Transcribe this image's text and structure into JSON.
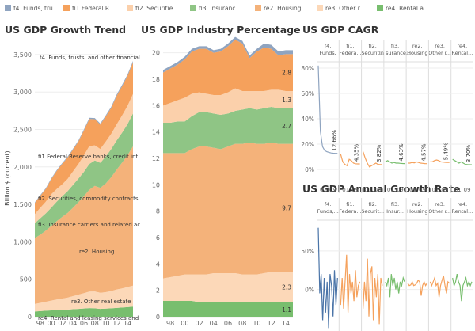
{
  "colors": {
    "f4": "#8fa4c0",
    "fi1": "#f5a15c",
    "fi2": "#fbd0ab",
    "fi3": "#8fc585",
    "re2": "#f4b27a",
    "re3": "#fcd8b8",
    "re4": "#78be6e",
    "grid": "#eeeeee",
    "axis": "#666666"
  },
  "legend": {
    "items": [
      {
        "label": "f4. Funds, trus...",
        "color": "#8fa4c0"
      },
      {
        "label": "fi1.Federal R...",
        "color": "#f5a15c"
      },
      {
        "label": "fi2. Securitie...",
        "color": "#fbd0ab"
      },
      {
        "label": "fi3. Insuranc...",
        "color": "#8fc585"
      },
      {
        "label": "re2. Housing",
        "color": "#f4b27a"
      },
      {
        "label": "re3. Other r...",
        "color": "#fcd8b8"
      },
      {
        "label": "re4. Rental a...",
        "color": "#78be6e"
      }
    ]
  },
  "chart_data": [
    {
      "type": "area",
      "title": "US GDP Growth Trend",
      "ylabel": "Billion $ (current)",
      "ylim": [
        0,
        3700
      ],
      "yticks": [
        "0",
        "500",
        "1,000",
        "1,500",
        "2,000",
        "2,500",
        "3,000",
        "3,500"
      ],
      "xticks": [
        "98",
        "00",
        "02",
        "04",
        "06",
        "08",
        "10",
        "12",
        "14"
      ],
      "x": [
        1997,
        1998,
        1999,
        2000,
        2001,
        2002,
        2003,
        2004,
        2005,
        2006,
        2007,
        2008,
        2009,
        2010,
        2011,
        2012,
        2013,
        2014,
        2015
      ],
      "series": [
        {
          "name": "re4. Rental and leasing services and lessors",
          "color": "#78be6e",
          "values": [
            70,
            75,
            80,
            85,
            90,
            92,
            95,
            100,
            105,
            110,
            115,
            112,
            105,
            108,
            112,
            118,
            123,
            128,
            135
          ]
        },
        {
          "name": "re3. Other real estate",
          "color": "#fcd8b8",
          "values": [
            100,
            110,
            120,
            130,
            140,
            150,
            160,
            175,
            190,
            205,
            220,
            225,
            215,
            220,
            230,
            245,
            255,
            268,
            280
          ]
        },
        {
          "name": "re2. Housing",
          "color": "#f4b27a",
          "values": [
            880,
            910,
            950,
            995,
            1045,
            1090,
            1130,
            1180,
            1235,
            1295,
            1360,
            1410,
            1400,
            1450,
            1520,
            1600,
            1680,
            1760,
            1860
          ]
        },
        {
          "name": "fi3. Insurance carriers and related activities",
          "color": "#8fc585",
          "values": [
            200,
            220,
            230,
            245,
            260,
            275,
            290,
            305,
            315,
            325,
            345,
            340,
            335,
            360,
            375,
            390,
            400,
            415,
            440
          ]
        },
        {
          "name": "fi2. Securities, commodity contracts, and investments",
          "color": "#fbd0ab",
          "values": [
            120,
            140,
            155,
            180,
            170,
            160,
            165,
            180,
            195,
            220,
            240,
            200,
            185,
            200,
            205,
            215,
            230,
            245,
            260
          ]
        },
        {
          "name": "fi1.Federal Reserve banks, credit intermediation",
          "color": "#f5a15c",
          "values": [
            150,
            160,
            170,
            200,
            240,
            270,
            285,
            290,
            300,
            330,
            360,
            350,
            325,
            335,
            345,
            380,
            390,
            400,
            420
          ]
        },
        {
          "name": "f4. Funds, trusts, and other financial vehicles",
          "color": "#8fa4c0",
          "values": [
            8,
            9,
            10,
            11,
            11,
            12,
            12,
            13,
            14,
            15,
            16,
            15,
            14,
            15,
            16,
            17,
            18,
            19,
            20
          ]
        }
      ],
      "annotations": [
        "f4. Funds, trusts, and other financial",
        "fi1.Federal Reserve banks, credit int",
        "fi2. Securities, commodity contracts",
        "fi3. Insurance carriers and related ac",
        "re2. Housing",
        "re3. Other real estate",
        "re4. Rental and leasing services and"
      ]
    },
    {
      "type": "area",
      "title": "US GDP Industry Percentage",
      "ylim": [
        0,
        21
      ],
      "yticks": [
        "0",
        "2",
        "4",
        "6",
        "8",
        "10",
        "12",
        "14",
        "16",
        "18",
        "20"
      ],
      "xticks": [
        "98",
        "00",
        "02",
        "04",
        "06",
        "08",
        "10",
        "12",
        "14"
      ],
      "x": [
        1997,
        1998,
        1999,
        2000,
        2001,
        2002,
        2003,
        2004,
        2005,
        2006,
        2007,
        2008,
        2009,
        2010,
        2011,
        2012,
        2013,
        2014,
        2015
      ],
      "series": [
        {
          "name": "re4",
          "color": "#78be6e",
          "values": [
            1.2,
            1.2,
            1.2,
            1.2,
            1.2,
            1.1,
            1.1,
            1.1,
            1.1,
            1.1,
            1.1,
            1.1,
            1.1,
            1.1,
            1.1,
            1.1,
            1.1,
            1.1,
            1.1
          ]
        },
        {
          "name": "re3",
          "color": "#fcd8b8",
          "values": [
            1.7,
            1.8,
            1.9,
            2.0,
            2.0,
            2.1,
            2.1,
            2.2,
            2.2,
            2.2,
            2.2,
            2.1,
            2.1,
            2.1,
            2.2,
            2.3,
            2.3,
            2.3,
            2.3
          ]
        },
        {
          "name": "re2",
          "color": "#f4b27a",
          "values": [
            9.5,
            9.4,
            9.3,
            9.2,
            9.5,
            9.7,
            9.7,
            9.5,
            9.4,
            9.6,
            9.8,
            9.9,
            10.0,
            9.9,
            9.8,
            9.8,
            9.7,
            9.7,
            9.7
          ]
        },
        {
          "name": "fi3",
          "color": "#8fc585",
          "values": [
            2.3,
            2.3,
            2.4,
            2.4,
            2.5,
            2.6,
            2.6,
            2.6,
            2.6,
            2.5,
            2.5,
            2.6,
            2.6,
            2.6,
            2.7,
            2.7,
            2.7,
            2.7,
            2.7
          ]
        },
        {
          "name": "fi2",
          "color": "#fbd0ab",
          "values": [
            1.3,
            1.5,
            1.6,
            1.8,
            1.7,
            1.5,
            1.4,
            1.4,
            1.5,
            1.6,
            1.7,
            1.4,
            1.3,
            1.4,
            1.3,
            1.3,
            1.4,
            1.3,
            1.3
          ]
        },
        {
          "name": "fi1",
          "color": "#f5a15c",
          "values": [
            2.5,
            2.6,
            2.7,
            2.9,
            3.2,
            3.3,
            3.4,
            3.2,
            3.3,
            3.5,
            3.7,
            3.6,
            2.5,
            3.0,
            3.3,
            3.1,
            2.6,
            2.8,
            2.8
          ]
        },
        {
          "name": "f4",
          "color": "#8fa4c0",
          "values": [
            0.2,
            0.2,
            0.2,
            0.2,
            0.2,
            0.2,
            0.2,
            0.2,
            0.2,
            0.2,
            0.2,
            0.2,
            0.2,
            0.2,
            0.3,
            0.3,
            0.3,
            0.3,
            0.3
          ]
        }
      ],
      "end_labels": [
        "1.1",
        "2.3",
        "9.7",
        "2.7",
        "1.3",
        "2.8"
      ]
    },
    {
      "type": "line",
      "title": "US GDP CAGR",
      "ylim": [
        -10,
        85
      ],
      "yticks": [
        "0%",
        "20%",
        "40%",
        "60%",
        "80%"
      ],
      "columns": [
        {
          "label": "f4. Funds,",
          "color": "#8fa4c0",
          "values": [
            82,
            30,
            18,
            15,
            14,
            13.5,
            13,
            12.8,
            12.7,
            12.66
          ],
          "end_label": "12.66%"
        },
        {
          "label": "fi1. Federa...",
          "color": "#f5a15c",
          "values": [
            12,
            6,
            4,
            3,
            8,
            7,
            5,
            4.5,
            4.4,
            4.35
          ],
          "end_label": "4.35%"
        },
        {
          "label": "fi2. Securit...",
          "color": "#f5a15c",
          "values": [
            14,
            9,
            5,
            2,
            3,
            4,
            5,
            4,
            3.9,
            3.82
          ],
          "end_label": "3.82%"
        },
        {
          "label": "fi3. In surance...",
          "color": "#78be6e",
          "values": [
            6,
            7,
            6,
            5,
            5.5,
            5,
            5,
            4.8,
            4.7,
            4.63
          ],
          "end_label": "4.63%"
        },
        {
          "label": "re2. Housing",
          "color": "#f5a15c",
          "values": [
            5,
            5,
            5.5,
            5.2,
            6,
            5.5,
            5,
            4.8,
            4.6,
            4.57
          ],
          "end_label": "4.57%"
        },
        {
          "label": "re3. Other r...",
          "color": "#f5a15c",
          "values": [
            6,
            6,
            7,
            7.5,
            7,
            6,
            5.8,
            5.6,
            5.5,
            5.49
          ],
          "end_label": "5.49%"
        },
        {
          "label": "re4. Rental...",
          "color": "#78be6e",
          "values": [
            8,
            7,
            6,
            5,
            6,
            5,
            4,
            3.8,
            3.75,
            3.7
          ],
          "end_label": "3.70%"
        }
      ],
      "xticks": [
        "01",
        "09"
      ]
    },
    {
      "type": "line",
      "title": "US GDP Annual Growth Rate",
      "ylim": [
        -60,
        90
      ],
      "yticks": [
        "0%",
        "50%"
      ],
      "columns": [
        {
          "label": "f4. Funds,...",
          "color": "#4a74a8",
          "values": [
            80,
            -5,
            20,
            -40,
            15,
            -30,
            10,
            -50,
            20,
            5,
            -35,
            25,
            -20,
            15
          ]
        },
        {
          "label": "fi1. Federa...",
          "color": "#f5a15c",
          "values": [
            -20,
            15,
            -25,
            10,
            45,
            -30,
            20,
            -5,
            10,
            -15,
            25,
            -10,
            5,
            10
          ]
        },
        {
          "label": "fi2. Securit...",
          "color": "#f5a15c",
          "values": [
            -25,
            10,
            -15,
            40,
            -35,
            20,
            30,
            -40,
            15,
            -10,
            20,
            -45,
            15,
            5
          ]
        },
        {
          "label": "fi3. Insur...",
          "color": "#78be6e",
          "values": [
            10,
            5,
            15,
            -10,
            20,
            5,
            15,
            0,
            10,
            -5,
            10,
            5,
            15,
            10
          ]
        },
        {
          "label": "re2. Housing",
          "color": "#f5a15c",
          "values": [
            8,
            5,
            6,
            10,
            5,
            6,
            8,
            12,
            10,
            -8,
            5,
            10,
            5,
            8
          ]
        },
        {
          "label": "re3. Other r...",
          "color": "#f5a15c",
          "values": [
            10,
            5,
            10,
            15,
            5,
            8,
            -10,
            5,
            12,
            18,
            5,
            -5,
            10,
            8
          ]
        },
        {
          "label": "re4. Rental...",
          "color": "#78be6e",
          "values": [
            15,
            5,
            10,
            20,
            10,
            5,
            -15,
            5,
            10,
            15,
            5,
            10,
            5,
            10
          ]
        }
      ],
      "xticks": [
        "01",
        "09"
      ]
    }
  ]
}
